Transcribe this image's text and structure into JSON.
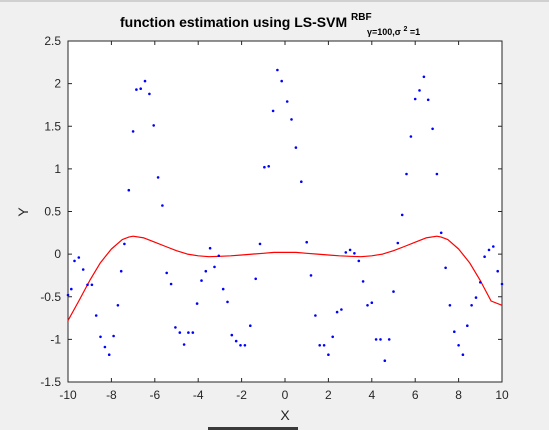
{
  "chart_data": {
    "type": "scatter",
    "title": {
      "main": "function estimation using  LS-SVM",
      "superscript": "RBF",
      "subscript_a": "γ=100,σ",
      "subscript_sup": "2",
      "subscript_b": "=1"
    },
    "xlabel": "X",
    "ylabel": "Y",
    "xlim": [
      -10,
      10
    ],
    "ylim": [
      -1.5,
      2.5
    ],
    "xticks": [
      -10,
      -8,
      -6,
      -4,
      -2,
      0,
      2,
      4,
      6,
      8,
      10
    ],
    "yticks": [
      -1.5,
      -1,
      -0.5,
      0,
      0.5,
      1,
      1.5,
      2,
      2.5
    ],
    "grid": false,
    "series": [
      {
        "kind": "points",
        "color": "#0000ff",
        "points": [
          [
            -10,
            -0.48
          ],
          [
            -9.85,
            -0.41
          ],
          [
            -9.7,
            -0.08
          ],
          [
            -9.5,
            -0.04
          ],
          [
            -9.3,
            -0.18
          ],
          [
            -9.1,
            -0.36
          ],
          [
            -8.9,
            -0.36
          ],
          [
            -8.7,
            -0.72
          ],
          [
            -8.5,
            -0.97
          ],
          [
            -8.3,
            -1.09
          ],
          [
            -8.1,
            -1.18
          ],
          [
            -7.9,
            -0.96
          ],
          [
            -7.7,
            -0.6
          ],
          [
            -7.55,
            -0.2
          ],
          [
            -7.4,
            0.12
          ],
          [
            -7.2,
            0.75
          ],
          [
            -7.0,
            1.44
          ],
          [
            -6.85,
            1.93
          ],
          [
            -6.65,
            1.94
          ],
          [
            -6.45,
            2.03
          ],
          [
            -6.25,
            1.88
          ],
          [
            -6.05,
            1.51
          ],
          [
            -5.85,
            0.9
          ],
          [
            -5.65,
            0.57
          ],
          [
            -5.45,
            -0.22
          ],
          [
            -5.25,
            -0.35
          ],
          [
            -5.05,
            -0.86
          ],
          [
            -4.85,
            -0.92
          ],
          [
            -4.65,
            -1.06
          ],
          [
            -4.45,
            -0.92
          ],
          [
            -4.25,
            -0.92
          ],
          [
            -4.05,
            -0.58
          ],
          [
            -3.85,
            -0.31
          ],
          [
            -3.65,
            -0.2
          ],
          [
            -3.45,
            0.07
          ],
          [
            -3.25,
            -0.15
          ],
          [
            -3.05,
            -0.02
          ],
          [
            -2.85,
            -0.41
          ],
          [
            -2.65,
            -0.56
          ],
          [
            -2.45,
            -0.95
          ],
          [
            -2.25,
            -1.02
          ],
          [
            -2.05,
            -1.07
          ],
          [
            -1.85,
            -1.07
          ],
          [
            -1.6,
            -0.84
          ],
          [
            -1.35,
            -0.29
          ],
          [
            -1.15,
            0.12
          ],
          [
            -0.95,
            1.02
          ],
          [
            -0.75,
            1.03
          ],
          [
            -0.55,
            1.68
          ],
          [
            -0.35,
            2.16
          ],
          [
            -0.15,
            2.03
          ],
          [
            0.1,
            1.79
          ],
          [
            0.3,
            1.58
          ],
          [
            0.5,
            1.25
          ],
          [
            0.75,
            0.85
          ],
          [
            1.0,
            0.14
          ],
          [
            1.2,
            -0.25
          ],
          [
            1.4,
            -0.72
          ],
          [
            1.6,
            -1.07
          ],
          [
            1.8,
            -1.07
          ],
          [
            2.0,
            -1.18
          ],
          [
            2.2,
            -0.97
          ],
          [
            2.4,
            -0.68
          ],
          [
            2.6,
            -0.65
          ],
          [
            2.8,
            0.02
          ],
          [
            3.0,
            0.05
          ],
          [
            3.2,
            0.01
          ],
          [
            3.4,
            -0.08
          ],
          [
            3.6,
            -0.32
          ],
          [
            3.8,
            -0.6
          ],
          [
            4.0,
            -0.57
          ],
          [
            4.2,
            -1.0
          ],
          [
            4.4,
            -1.0
          ],
          [
            4.6,
            -1.25
          ],
          [
            4.8,
            -1.0
          ],
          [
            5.0,
            -0.44
          ],
          [
            5.2,
            0.13
          ],
          [
            5.4,
            0.46
          ],
          [
            5.6,
            0.94
          ],
          [
            5.8,
            1.38
          ],
          [
            6.0,
            1.82
          ],
          [
            6.2,
            1.92
          ],
          [
            6.4,
            2.08
          ],
          [
            6.6,
            1.81
          ],
          [
            6.8,
            1.47
          ],
          [
            7.0,
            0.94
          ],
          [
            7.2,
            0.25
          ],
          [
            7.4,
            -0.16
          ],
          [
            7.6,
            -0.6
          ],
          [
            7.8,
            -0.91
          ],
          [
            8.0,
            -1.07
          ],
          [
            8.2,
            -1.18
          ],
          [
            8.4,
            -0.84
          ],
          [
            8.6,
            -0.6
          ],
          [
            8.8,
            -0.51
          ],
          [
            9.0,
            -0.33
          ],
          [
            9.2,
            -0.03
          ],
          [
            9.4,
            0.05
          ],
          [
            9.6,
            0.09
          ],
          [
            9.8,
            -0.2
          ],
          [
            10.0,
            -0.35
          ]
        ]
      },
      {
        "kind": "line",
        "color": "#ff0000",
        "points": [
          [
            -10,
            -0.78
          ],
          [
            -9.5,
            -0.55
          ],
          [
            -9.0,
            -0.31
          ],
          [
            -8.5,
            -0.1
          ],
          [
            -8.0,
            0.06
          ],
          [
            -7.5,
            0.17
          ],
          [
            -7.2,
            0.2
          ],
          [
            -7.0,
            0.21
          ],
          [
            -6.5,
            0.19
          ],
          [
            -6.0,
            0.14
          ],
          [
            -5.5,
            0.09
          ],
          [
            -5.0,
            0.04
          ],
          [
            -4.5,
            0.0
          ],
          [
            -4.0,
            -0.02
          ],
          [
            -3.5,
            -0.03
          ],
          [
            -3.0,
            -0.025
          ],
          [
            -2.5,
            -0.02
          ],
          [
            -2.0,
            -0.01
          ],
          [
            -1.5,
            0.0
          ],
          [
            -1.0,
            0.01
          ],
          [
            -0.5,
            0.02
          ],
          [
            0.0,
            0.02
          ],
          [
            0.5,
            0.02
          ],
          [
            1.0,
            0.01
          ],
          [
            1.5,
            0.0
          ],
          [
            2.0,
            -0.01
          ],
          [
            2.5,
            -0.02
          ],
          [
            3.0,
            -0.025
          ],
          [
            3.5,
            -0.03
          ],
          [
            4.0,
            -0.02
          ],
          [
            4.5,
            0.0
          ],
          [
            5.0,
            0.04
          ],
          [
            5.5,
            0.09
          ],
          [
            6.0,
            0.14
          ],
          [
            6.5,
            0.19
          ],
          [
            7.0,
            0.21
          ],
          [
            7.2,
            0.2
          ],
          [
            7.5,
            0.17
          ],
          [
            8.0,
            0.06
          ],
          [
            8.5,
            -0.1
          ],
          [
            9.0,
            -0.31
          ],
          [
            9.5,
            -0.55
          ],
          [
            10.0,
            -0.6
          ]
        ]
      }
    ]
  }
}
